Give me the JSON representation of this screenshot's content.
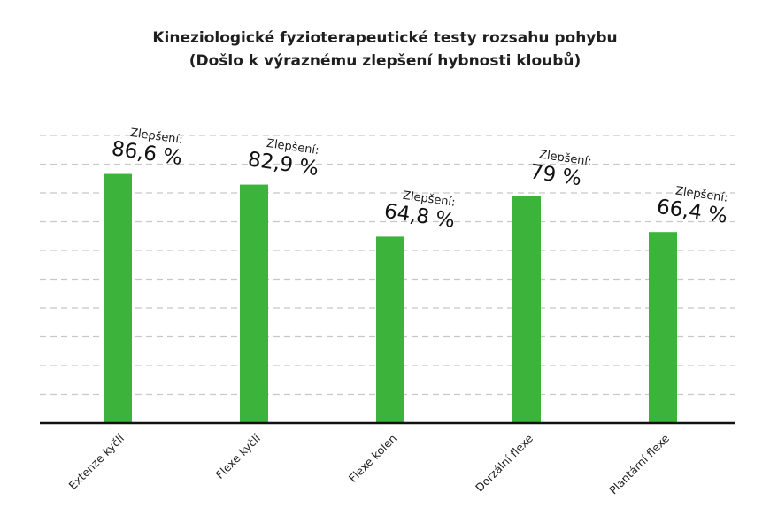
{
  "chart_data": {
    "type": "bar",
    "title": "Kineziologické fyzioterapeutické testy rozsahu pohybu",
    "subtitle": "(Došlo k výraznému zlepšení hybnosti kloubů)",
    "xlabel": "",
    "ylabel": "",
    "categories": [
      "Extenze kyčlí",
      "Flexe kyčlí",
      "Flexe kolen",
      "Dorzální flexe",
      "Plantární flexe"
    ],
    "values": [
      86.6,
      82.9,
      64.8,
      79,
      66.4
    ],
    "annotation_prefix": "Zlepšení:",
    "data_labels": [
      "86,6 %",
      "82,9 %",
      "64,8 %",
      "79 %",
      "66,4 %"
    ],
    "ylim": [
      0,
      100
    ],
    "grid": true,
    "colors": {
      "bar": "#3cb43c",
      "grid": "#c8c8c8",
      "axis": "#111111"
    }
  }
}
